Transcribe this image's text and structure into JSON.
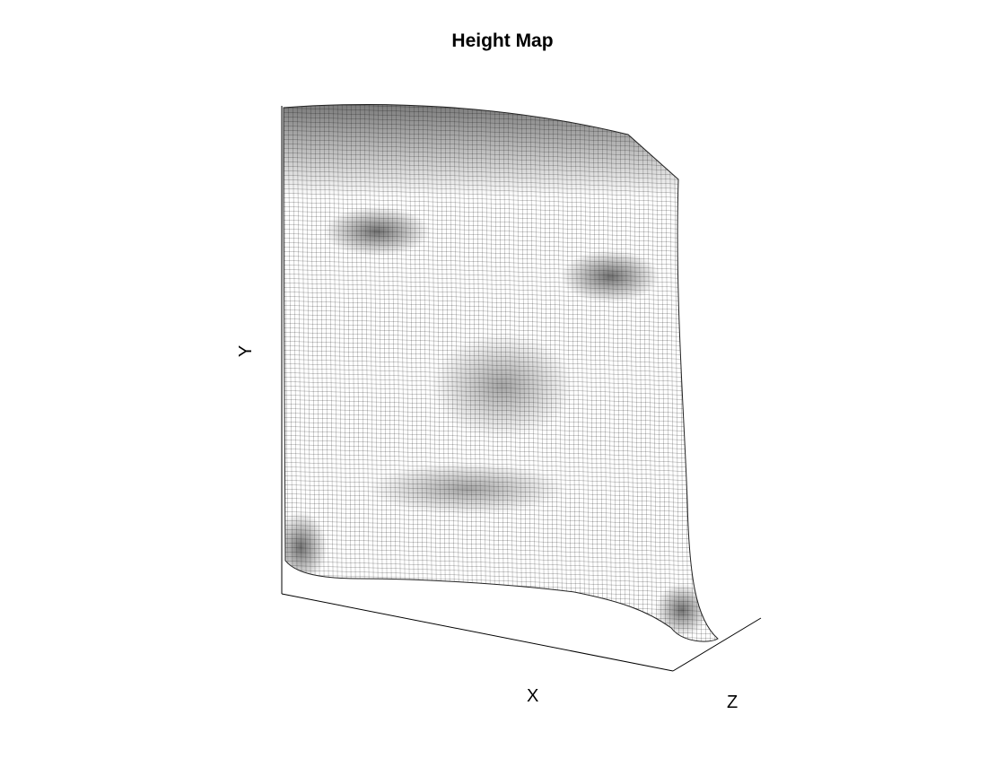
{
  "chart_data": {
    "type": "surface-mesh",
    "title": "Height Map",
    "xlabel": "X",
    "ylabel": "Y",
    "zlabel": "Z",
    "colormap": "gray",
    "mesh_edge_color": "#000000",
    "mesh_face_color": "#ffffff",
    "grid": false,
    "view": "3d-oblique",
    "surface_description_regions": [
      {
        "name": "forehead-hair",
        "shade": "dark"
      },
      {
        "name": "eyes",
        "shade": "dark"
      },
      {
        "name": "cheeks",
        "shade": "light"
      },
      {
        "name": "nose",
        "shade": "mid"
      },
      {
        "name": "mouth",
        "shade": "mid"
      },
      {
        "name": "chin",
        "shade": "light"
      }
    ]
  }
}
